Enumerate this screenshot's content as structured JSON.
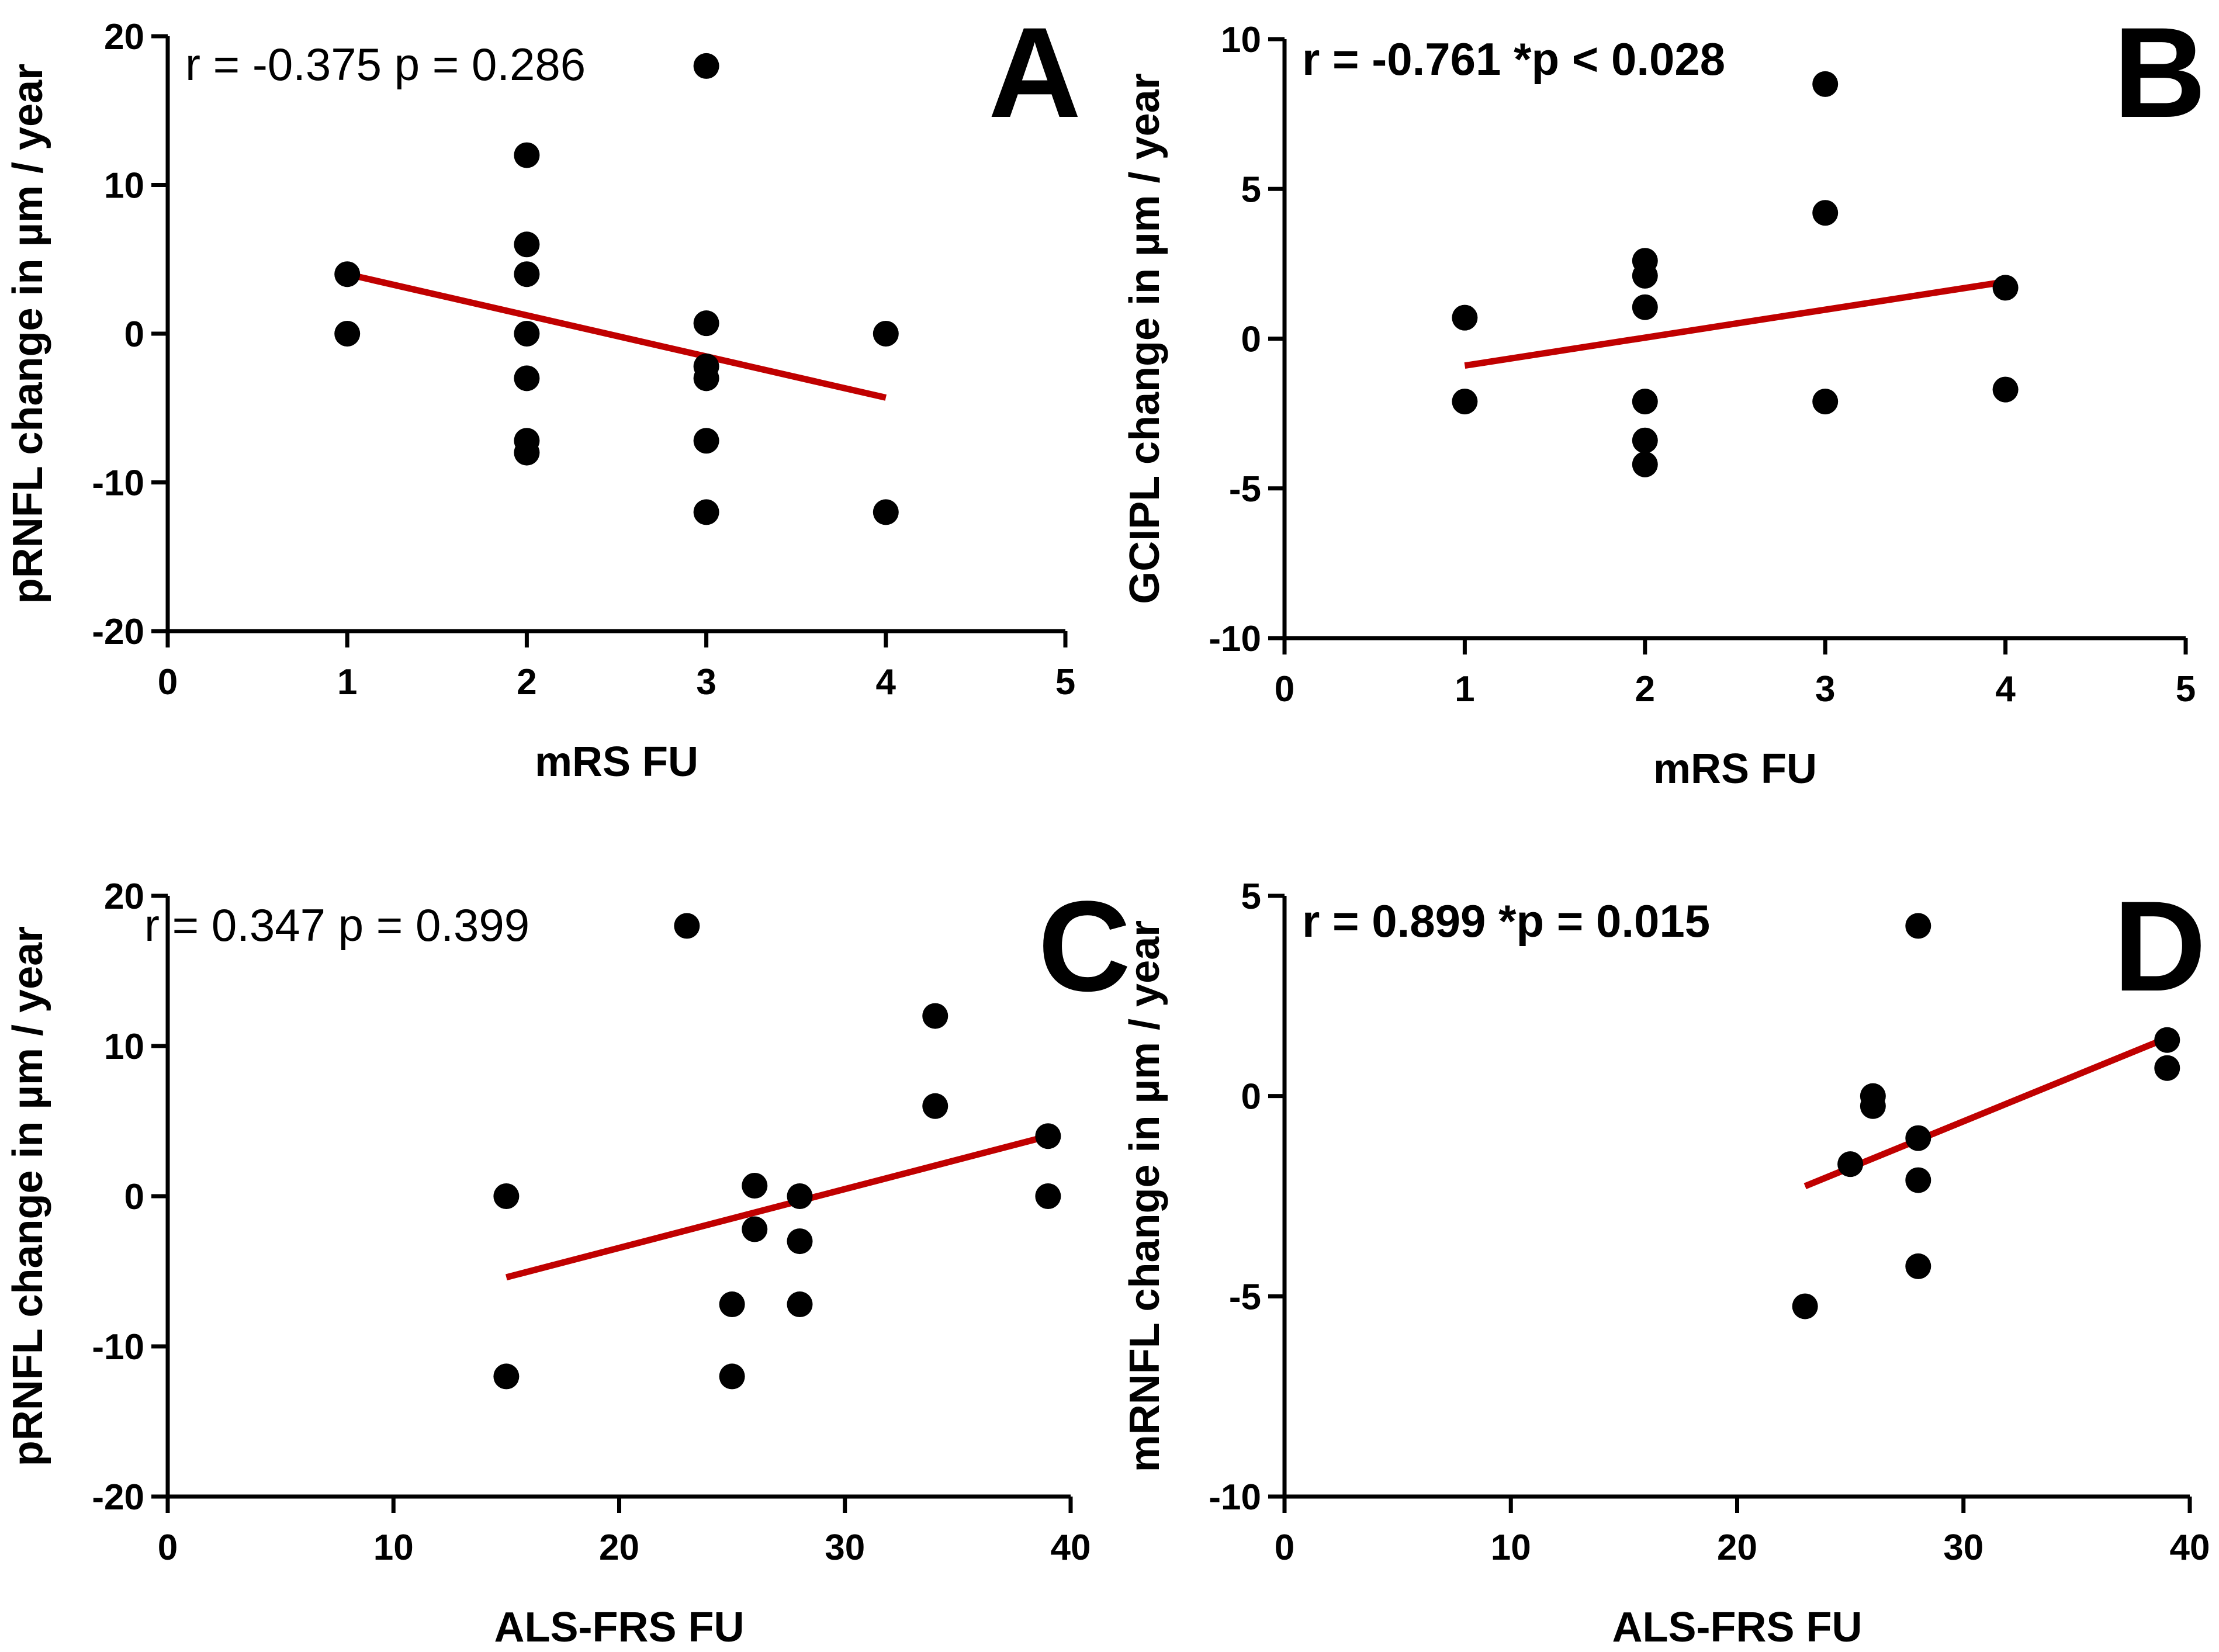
{
  "colors": {
    "axis": "#000000",
    "point": "#000000",
    "fit_line": "#c00000"
  },
  "chart_data": [
    {
      "type": "scatter",
      "panel_label": "A",
      "stat_text": "r = -0.375 p = 0.286",
      "stat_bold": false,
      "xlabel": "mRS FU",
      "ylabel": "pRNFL change in µm / year",
      "xlim": [
        0,
        5
      ],
      "ylim": [
        -20,
        20
      ],
      "x_ticks": [
        0,
        1,
        2,
        3,
        4,
        5
      ],
      "y_ticks": [
        -20,
        -10,
        0,
        10,
        20
      ],
      "x_tick_labels": [
        "0",
        "1",
        "2",
        "3",
        "4",
        "5"
      ],
      "y_tick_labels": [
        "-20",
        "-10",
        "0",
        "10",
        "20"
      ],
      "points": [
        {
          "x": 1,
          "y": 4
        },
        {
          "x": 1,
          "y": 0
        },
        {
          "x": 2,
          "y": 12
        },
        {
          "x": 2,
          "y": 6
        },
        {
          "x": 2,
          "y": 4
        },
        {
          "x": 2,
          "y": 0
        },
        {
          "x": 2,
          "y": -3
        },
        {
          "x": 2,
          "y": -7.2
        },
        {
          "x": 2,
          "y": -8
        },
        {
          "x": 3,
          "y": 18
        },
        {
          "x": 3,
          "y": 0.7
        },
        {
          "x": 3,
          "y": -2.2
        },
        {
          "x": 3,
          "y": -3
        },
        {
          "x": 3,
          "y": -7.2
        },
        {
          "x": 3,
          "y": -12
        },
        {
          "x": 4,
          "y": 0
        },
        {
          "x": 4,
          "y": -12
        }
      ],
      "fit_line": {
        "x": [
          1,
          4
        ],
        "y": [
          4.0,
          -4.3
        ]
      }
    },
    {
      "type": "scatter",
      "panel_label": "B",
      "stat_text": "r = -0.761 *p < 0.028",
      "stat_bold": true,
      "xlabel": "mRS FU",
      "ylabel": "GCIPL change in µm / year",
      "xlim": [
        0,
        5
      ],
      "ylim": [
        -10,
        10
      ],
      "x_ticks": [
        0,
        1,
        2,
        3,
        4,
        5
      ],
      "y_ticks": [
        -10,
        -5,
        0,
        5,
        10
      ],
      "x_tick_labels": [
        "0",
        "1",
        "2",
        "3",
        "4",
        "5"
      ],
      "y_tick_labels": [
        "-10",
        "-5",
        "0",
        "5",
        "10"
      ],
      "points": [
        {
          "x": 1,
          "y": 0.7
        },
        {
          "x": 1,
          "y": -2.1
        },
        {
          "x": 2,
          "y": 2.6
        },
        {
          "x": 2,
          "y": 2.1
        },
        {
          "x": 2,
          "y": 1.05
        },
        {
          "x": 2,
          "y": -2.1
        },
        {
          "x": 2,
          "y": -3.4
        },
        {
          "x": 2,
          "y": -4.2
        },
        {
          "x": 3,
          "y": 8.5
        },
        {
          "x": 3,
          "y": 4.2
        },
        {
          "x": 3,
          "y": -2.1
        },
        {
          "x": 4,
          "y": 1.7
        },
        {
          "x": 4,
          "y": -1.7
        }
      ],
      "fit_line": {
        "x": [
          1,
          4
        ],
        "y": [
          -0.9,
          1.9
        ]
      }
    },
    {
      "type": "scatter",
      "panel_label": "C",
      "stat_text": "r = 0.347 p = 0.399",
      "stat_bold": false,
      "xlabel": "ALS-FRS FU",
      "ylabel": "pRNFL change in µm / year",
      "xlim": [
        0,
        40
      ],
      "ylim": [
        -20,
        20
      ],
      "x_ticks": [
        0,
        10,
        20,
        30,
        40
      ],
      "y_ticks": [
        -20,
        -10,
        0,
        10,
        20
      ],
      "x_tick_labels": [
        "0",
        "10",
        "20",
        "30",
        "40"
      ],
      "y_tick_labels": [
        "-20",
        "-10",
        "0",
        "10",
        "20"
      ],
      "points": [
        {
          "x": 15,
          "y": 0
        },
        {
          "x": 15,
          "y": -12
        },
        {
          "x": 23,
          "y": 18
        },
        {
          "x": 25,
          "y": -7.2
        },
        {
          "x": 25,
          "y": -12
        },
        {
          "x": 26,
          "y": 0.7
        },
        {
          "x": 26,
          "y": -2.2
        },
        {
          "x": 28,
          "y": 0
        },
        {
          "x": 28,
          "y": -3
        },
        {
          "x": 28,
          "y": -7.2
        },
        {
          "x": 34,
          "y": 12
        },
        {
          "x": 34,
          "y": 6
        },
        {
          "x": 39,
          "y": 4
        },
        {
          "x": 39,
          "y": 0
        }
      ],
      "fit_line": {
        "x": [
          15,
          39
        ],
        "y": [
          -5.4,
          4.0
        ]
      }
    },
    {
      "type": "scatter",
      "panel_label": "D",
      "stat_text": "r = 0.899 *p = 0.015",
      "stat_bold": true,
      "xlabel": "ALS-FRS FU",
      "ylabel": "mRNFL change in µm / year",
      "xlim": [
        0,
        40
      ],
      "ylim": [
        -10,
        5
      ],
      "x_ticks": [
        0,
        10,
        20,
        30,
        40
      ],
      "y_ticks": [
        -10,
        -5,
        0,
        5
      ],
      "x_tick_labels": [
        "0",
        "10",
        "20",
        "30",
        "40"
      ],
      "y_tick_labels": [
        "-10",
        "-5",
        "0",
        "5"
      ],
      "points": [
        {
          "x": 23,
          "y": -5.25
        },
        {
          "x": 25,
          "y": -1.7
        },
        {
          "x": 26,
          "y": 0
        },
        {
          "x": 26,
          "y": -0.25
        },
        {
          "x": 28,
          "y": 4.25
        },
        {
          "x": 28,
          "y": -1.05
        },
        {
          "x": 28,
          "y": -2.1
        },
        {
          "x": 28,
          "y": -4.25
        },
        {
          "x": 39,
          "y": 1.4
        },
        {
          "x": 39,
          "y": 0.7
        }
      ],
      "fit_line": {
        "x": [
          23,
          39
        ],
        "y": [
          -2.25,
          1.45
        ]
      }
    }
  ]
}
